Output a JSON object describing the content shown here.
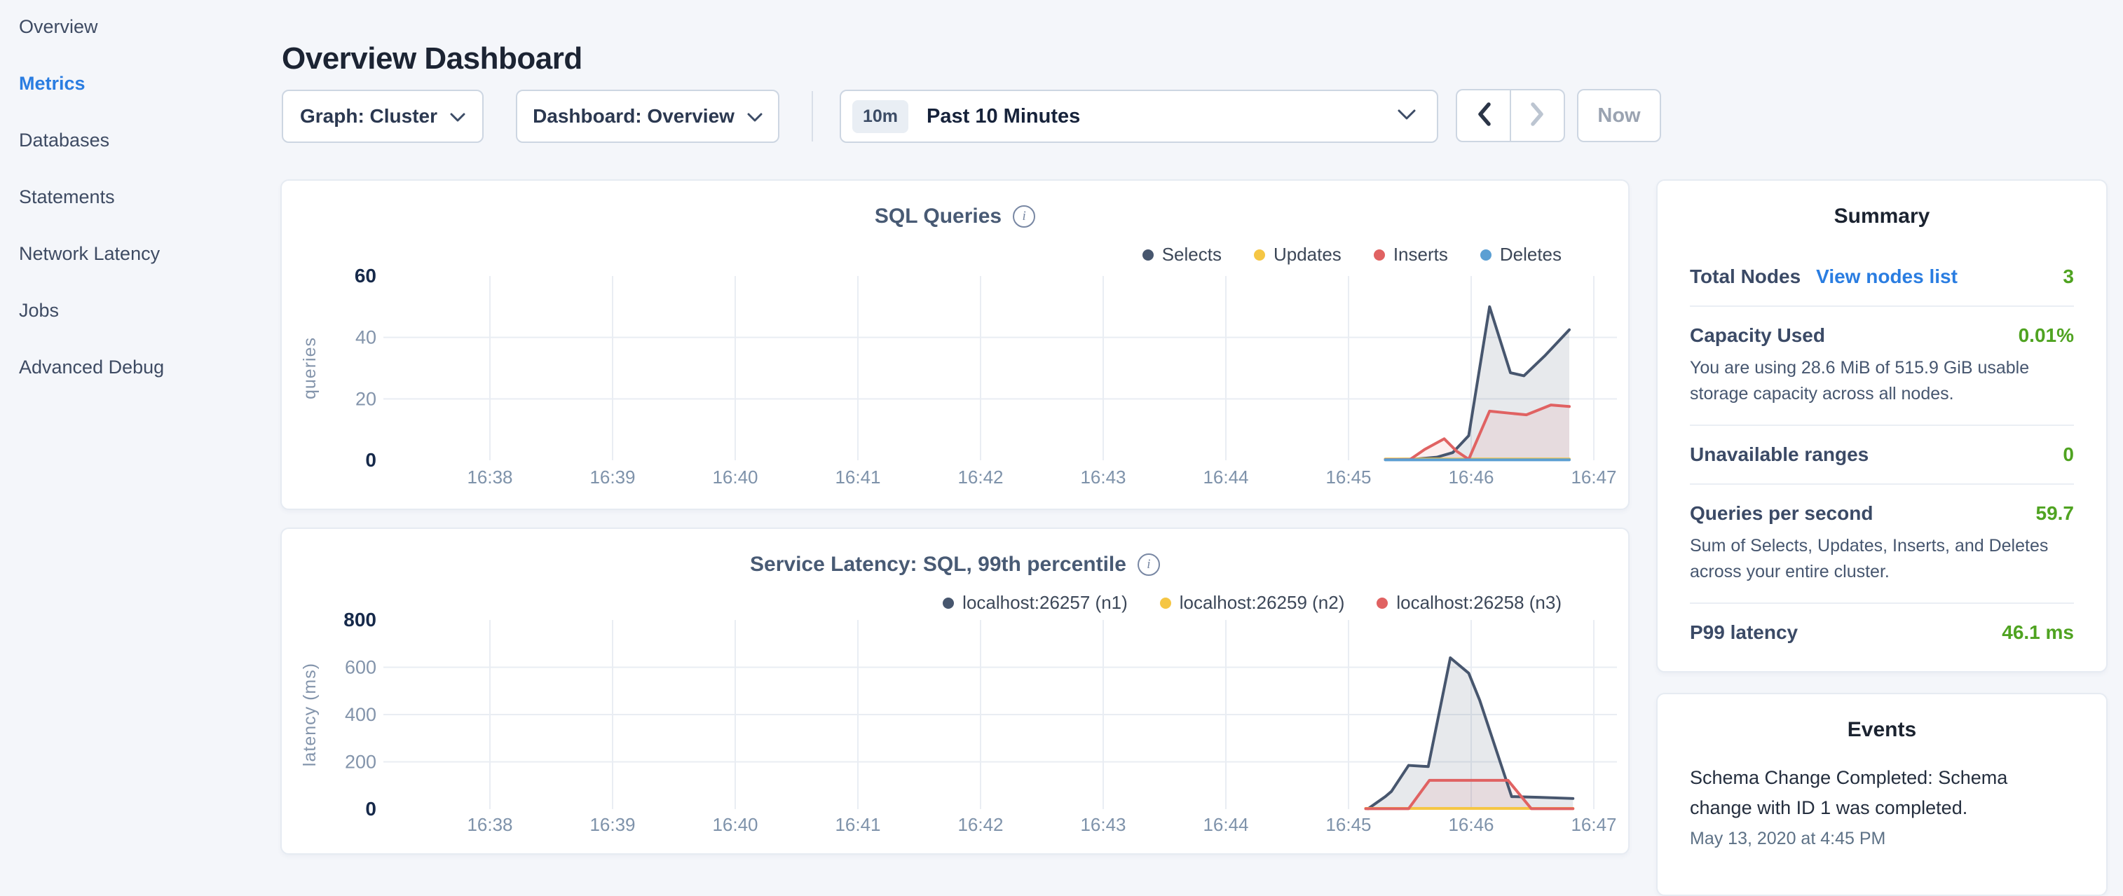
{
  "sidebar": {
    "items": [
      {
        "label": "Overview",
        "active": false
      },
      {
        "label": "Metrics",
        "active": true
      },
      {
        "label": "Databases",
        "active": false
      },
      {
        "label": "Statements",
        "active": false
      },
      {
        "label": "Network Latency",
        "active": false
      },
      {
        "label": "Jobs",
        "active": false
      },
      {
        "label": "Advanced Debug",
        "active": false
      }
    ]
  },
  "header": {
    "title": "Overview Dashboard"
  },
  "controls": {
    "graph_dropdown": "Graph: Cluster",
    "dashboard_dropdown": "Dashboard: Overview",
    "time_badge": "10m",
    "time_label": "Past 10 Minutes",
    "prev_enabled": true,
    "next_enabled": false,
    "now_label": "Now"
  },
  "chart_data": [
    {
      "type": "area",
      "title": "SQL Queries",
      "ylabel": "queries",
      "ylim": [
        0,
        60
      ],
      "y_ticks": [
        0,
        20,
        40,
        60
      ],
      "x_tick_labels": [
        "16:38",
        "16:39",
        "16:40",
        "16:41",
        "16:42",
        "16:43",
        "16:44",
        "16:45",
        "16:46",
        "16:47"
      ],
      "x_unit": "series x = minutes after 16:38",
      "grid": true,
      "legend_position": "top-right",
      "series": [
        {
          "name": "Selects",
          "color": "#47566e",
          "fill": "rgba(71,86,110,0.13)",
          "points": [
            [
              7.3,
              0.3
            ],
            [
              7.55,
              0.4
            ],
            [
              7.72,
              1.0
            ],
            [
              7.85,
              2.5
            ],
            [
              7.98,
              8
            ],
            [
              8.15,
              50
            ],
            [
              8.32,
              28.5
            ],
            [
              8.43,
              27.5
            ],
            [
              8.6,
              34
            ],
            [
              8.8,
              42.5
            ]
          ]
        },
        {
          "name": "Updates",
          "color": "#f5c644",
          "fill": null,
          "points": [
            [
              7.3,
              0.4
            ],
            [
              8.8,
              0.4
            ]
          ]
        },
        {
          "name": "Inserts",
          "color": "#e06262",
          "fill": "rgba(224,98,98,0.10)",
          "points": [
            [
              7.3,
              0.2
            ],
            [
              7.5,
              0.2
            ],
            [
              7.62,
              3.5
            ],
            [
              7.78,
              7
            ],
            [
              7.88,
              3
            ],
            [
              7.98,
              0.3
            ],
            [
              8.15,
              16
            ],
            [
              8.32,
              15.3
            ],
            [
              8.45,
              14.8
            ],
            [
              8.65,
              18
            ],
            [
              8.8,
              17.5
            ]
          ]
        },
        {
          "name": "Deletes",
          "color": "#5b9fd3",
          "fill": null,
          "points": [
            [
              7.3,
              0.15
            ],
            [
              8.8,
              0.15
            ]
          ]
        }
      ]
    },
    {
      "type": "area",
      "title": "Service Latency: SQL, 99th percentile",
      "ylabel": "latency (ms)",
      "ylim": [
        0,
        800
      ],
      "y_ticks": [
        0,
        200,
        400,
        600,
        800
      ],
      "x_tick_labels": [
        "16:38",
        "16:39",
        "16:40",
        "16:41",
        "16:42",
        "16:43",
        "16:44",
        "16:45",
        "16:46",
        "16:47"
      ],
      "x_unit": "series x = minutes after 16:38",
      "grid": true,
      "legend_position": "top-right",
      "series": [
        {
          "name": "localhost:26257 (n1)",
          "color": "#47566e",
          "fill": "rgba(71,86,110,0.13)",
          "points": [
            [
              7.16,
              2
            ],
            [
              7.3,
              53
            ],
            [
              7.35,
              75
            ],
            [
              7.49,
              185
            ],
            [
              7.65,
              180
            ],
            [
              7.83,
              640
            ],
            [
              7.98,
              575
            ],
            [
              8.07,
              460
            ],
            [
              8.33,
              53
            ],
            [
              8.55,
              50
            ],
            [
              8.83,
              45
            ]
          ]
        },
        {
          "name": "localhost:26259 (n2)",
          "color": "#f5c644",
          "fill": null,
          "points": [
            [
              7.14,
              3
            ],
            [
              8.83,
              3
            ]
          ]
        },
        {
          "name": "localhost:26258 (n3)",
          "color": "#e06262",
          "fill": "rgba(224,98,98,0.10)",
          "points": [
            [
              7.14,
              2
            ],
            [
              7.49,
              2
            ],
            [
              7.66,
              122
            ],
            [
              8.3,
              122
            ],
            [
              8.49,
              2
            ],
            [
              8.83,
              2
            ]
          ]
        }
      ]
    }
  ],
  "summary": {
    "title": "Summary",
    "rows": [
      {
        "label": "Total Nodes",
        "link": "View nodes list",
        "value": "3",
        "description": null
      },
      {
        "label": "Capacity Used",
        "link": null,
        "value": "0.01%",
        "description": "You are using 28.6 MiB of 515.9 GiB usable storage capacity across all nodes."
      },
      {
        "label": "Unavailable ranges",
        "link": null,
        "value": "0",
        "description": null
      },
      {
        "label": "Queries per second",
        "link": null,
        "value": "59.7",
        "description": "Sum of Selects, Updates, Inserts, and Deletes across your entire cluster."
      },
      {
        "label": "P99 latency",
        "link": null,
        "value": "46.1 ms",
        "description": null
      }
    ]
  },
  "events": {
    "title": "Events",
    "items": [
      {
        "message": "Schema Change Completed: Schema change with ID 1 was completed.",
        "timestamp": "May 13, 2020 at 4:45 PM"
      }
    ]
  },
  "colors": {
    "accent_blue": "#2a7de1",
    "value_green": "#4fa321",
    "series_navy": "#47566e",
    "series_yellow": "#f5c644",
    "series_red": "#e06262",
    "series_blue": "#5b9fd3",
    "grid": "#e9edf3",
    "page_background": "#f4f6fa"
  }
}
